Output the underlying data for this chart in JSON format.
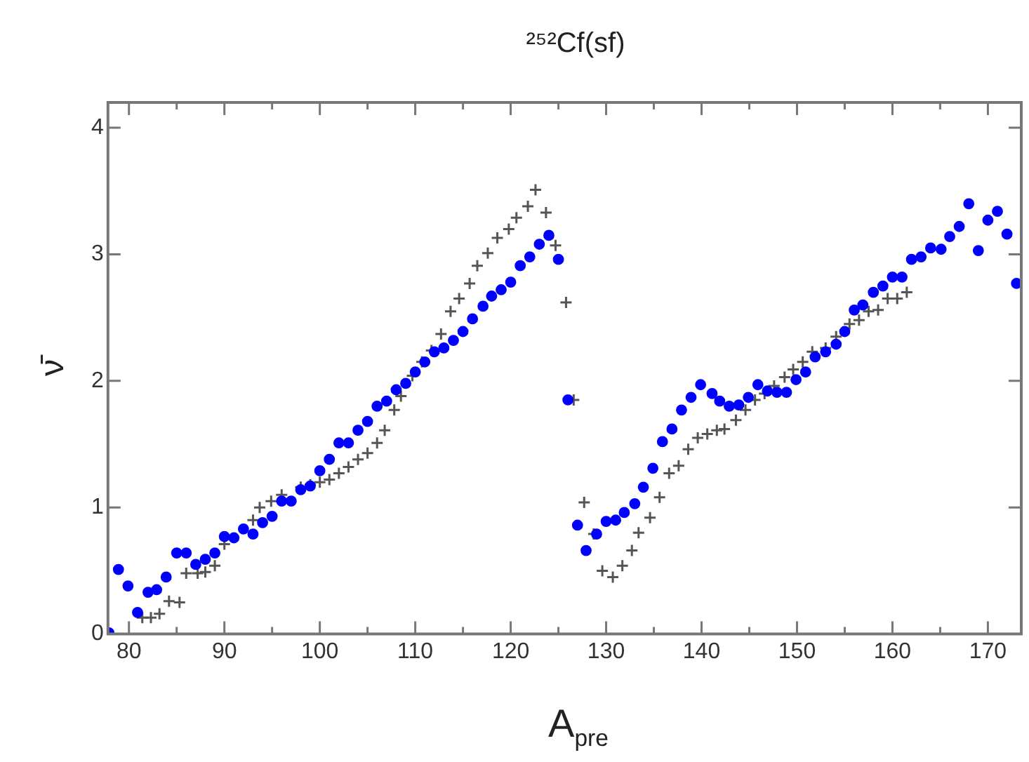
{
  "chart_data": {
    "type": "scatter",
    "title": "²⁵²Cf(sf)",
    "xlabel": "A$_{pre}$",
    "ylabel": "ν̄",
    "xlim": [
      77.8,
      173.5
    ],
    "ylim": [
      0,
      4.2
    ],
    "xticks": [
      80,
      {
        "value": 85,
        "label": null
      },
      90,
      {
        "value": 95,
        "label": null
      },
      100,
      {
        "value": 105,
        "label": null
      },
      110,
      {
        "value": 115,
        "label": null
      },
      120,
      {
        "value": 125,
        "label": null
      },
      130,
      {
        "value": 135,
        "label": null
      },
      140,
      {
        "value": 145,
        "label": null
      },
      150,
      {
        "value": 155,
        "label": null
      },
      160,
      {
        "value": 165,
        "label": null
      },
      170
    ],
    "yticks": [
      0,
      1,
      2,
      3,
      4
    ],
    "grid": false,
    "legend": false,
    "series": [
      {
        "color": "#0000ff",
        "marker": "circle",
        "x": [
          77.9,
          78.9,
          79.9,
          80.9,
          82.0,
          82.9,
          83.9,
          85.0,
          86.0,
          87.0,
          88.0,
          89.0,
          90.0,
          91.0,
          92.0,
          93.0,
          94.0,
          95.0,
          96.0,
          97.0,
          98.0,
          99.0,
          100.0,
          101.0,
          102.0,
          103.0,
          104.0,
          105.0,
          106.0,
          107.0,
          108.0,
          109.0,
          110.0,
          111.0,
          112.0,
          113.0,
          114.0,
          115.0,
          116.0,
          117.1,
          118.0,
          119.0,
          120.0,
          121.0,
          122.0,
          123.0,
          124.0,
          125.0,
          126.0,
          127.0,
          127.9,
          129.0,
          130.0,
          131.0,
          131.9,
          133.0,
          133.9,
          134.9,
          135.9,
          136.9,
          137.9,
          138.9,
          139.9,
          141.1,
          141.9,
          142.9,
          143.9,
          144.9,
          145.9,
          146.9,
          147.9,
          148.9,
          149.9,
          150.9,
          151.9,
          153.0,
          154.1,
          155.0,
          156.0,
          156.9,
          158.0,
          159.0,
          160.0,
          161.0,
          162.0,
          163.0,
          164.0,
          165.1,
          166.0,
          167.0,
          168.0,
          169.0,
          170.0,
          171.0,
          172.0,
          173.0
        ],
        "values": [
          0.01,
          0.51,
          0.38,
          0.17,
          0.33,
          0.35,
          0.45,
          0.64,
          0.64,
          0.55,
          0.59,
          0.64,
          0.77,
          0.76,
          0.83,
          0.79,
          0.88,
          0.93,
          1.05,
          1.05,
          1.14,
          1.17,
          1.29,
          1.38,
          1.51,
          1.51,
          1.61,
          1.68,
          1.8,
          1.84,
          1.93,
          1.98,
          2.07,
          2.15,
          2.23,
          2.26,
          2.32,
          2.39,
          2.49,
          2.59,
          2.67,
          2.72,
          2.78,
          2.91,
          2.98,
          3.08,
          3.15,
          2.96,
          1.85,
          0.86,
          0.66,
          0.79,
          0.89,
          0.9,
          0.96,
          1.03,
          1.16,
          1.31,
          1.52,
          1.62,
          1.77,
          1.87,
          1.97,
          1.9,
          1.84,
          1.8,
          1.81,
          1.87,
          1.97,
          1.92,
          1.91,
          1.91,
          2.01,
          2.07,
          2.19,
          2.23,
          2.29,
          2.39,
          2.56,
          2.6,
          2.7,
          2.75,
          2.82,
          2.82,
          2.96,
          2.98,
          3.05,
          3.04,
          3.14,
          3.22,
          3.4,
          3.03,
          3.27,
          3.34,
          3.16,
          2.77
        ]
      },
      {
        "color": "#555555",
        "marker": "cross",
        "x": [
          81.4,
          82.3,
          83.2,
          84.2,
          85.3,
          86.0,
          87.2,
          88.0,
          89.0,
          90.0,
          92.0,
          93.0,
          93.7,
          94.9,
          96.0,
          98.0,
          99.0,
          100.0,
          101.0,
          102.0,
          103.0,
          104.0,
          105.0,
          106.0,
          106.8,
          107.8,
          108.5,
          109.7,
          110.7,
          111.7,
          112.7,
          113.7,
          114.6,
          115.7,
          116.5,
          117.6,
          118.6,
          119.8,
          120.6,
          121.8,
          122.6,
          123.7,
          124.7,
          125.8,
          126.6,
          127.7,
          128.7,
          129.6,
          130.7,
          131.7,
          132.7,
          133.4,
          134.6,
          135.6,
          136.6,
          137.6,
          138.6,
          139.6,
          140.6,
          141.6,
          142.4,
          143.6,
          144.6,
          145.6,
          146.6,
          147.6,
          148.7,
          149.6,
          150.6,
          151.6,
          153.0,
          154.1,
          155.5,
          156.5,
          157.5,
          158.5,
          159.5,
          160.5,
          161.5
        ],
        "values": [
          0.13,
          0.13,
          0.16,
          0.26,
          0.25,
          0.48,
          0.48,
          0.49,
          0.54,
          0.71,
          null,
          0.9,
          1.0,
          1.05,
          1.1,
          1.16,
          1.18,
          1.2,
          1.22,
          1.27,
          1.32,
          1.38,
          1.43,
          1.51,
          1.61,
          1.77,
          1.88,
          2.04,
          2.15,
          2.24,
          2.37,
          2.55,
          2.65,
          2.77,
          2.91,
          3.01,
          3.13,
          3.2,
          3.29,
          3.38,
          3.51,
          3.33,
          3.07,
          2.62,
          1.85,
          1.04,
          0.79,
          0.5,
          0.45,
          0.54,
          0.66,
          0.8,
          0.92,
          1.08,
          1.27,
          1.33,
          1.46,
          1.55,
          1.58,
          1.61,
          1.62,
          1.69,
          1.77,
          1.85,
          1.9,
          1.96,
          2.03,
          2.09,
          2.15,
          2.23,
          2.26,
          2.35,
          2.45,
          2.48,
          2.55,
          2.56,
          2.65,
          2.65,
          2.7
        ]
      }
    ]
  }
}
